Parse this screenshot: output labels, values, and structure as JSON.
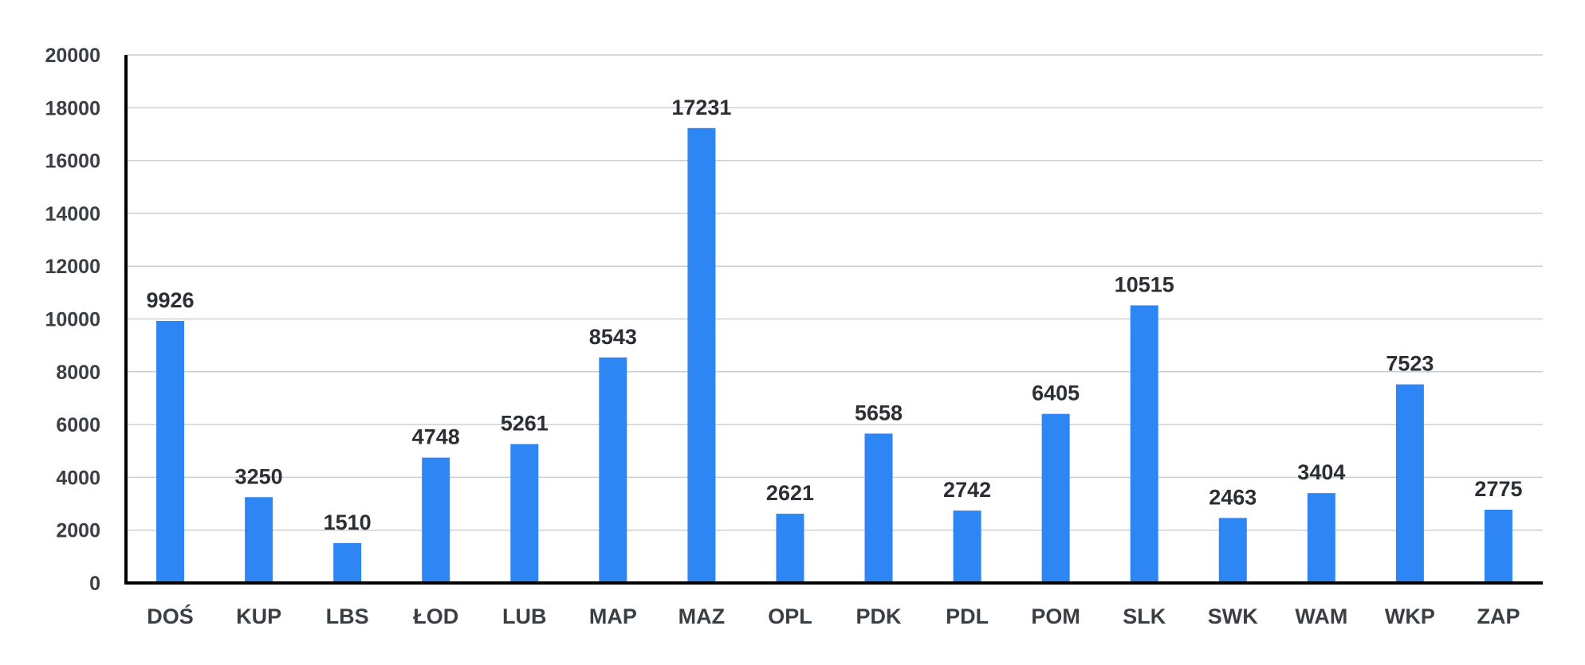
{
  "chart_data": {
    "type": "bar",
    "categories": [
      "DOŚ",
      "KUP",
      "LBS",
      "ŁOD",
      "LUB",
      "MAP",
      "MAZ",
      "OPL",
      "PDK",
      "PDL",
      "POM",
      "SLK",
      "SWK",
      "WAM",
      "WKP",
      "ZAP"
    ],
    "values": [
      9926,
      3250,
      1510,
      4748,
      5261,
      8543,
      17231,
      2621,
      5658,
      2742,
      6405,
      10515,
      2463,
      3404,
      7523,
      2775
    ],
    "data_labels": [
      "9926",
      "3250",
      "1510",
      "4748",
      "5261",
      "8543",
      "17231",
      "2621",
      "5658",
      "2742",
      "6405",
      "10515",
      "2463",
      "3404",
      "7523",
      "2775"
    ],
    "y_ticks": [
      0,
      2000,
      4000,
      6000,
      8000,
      10000,
      12000,
      14000,
      16000,
      18000,
      20000
    ],
    "y_tick_labels": [
      "0",
      "2000",
      "4000",
      "6000",
      "8000",
      "10000",
      "12000",
      "14000",
      "16000",
      "18000",
      "20000"
    ],
    "ylim": [
      0,
      20000
    ],
    "grid": true,
    "legend": "none",
    "bar_color": "#2e86f5",
    "grid_color": "#c9d0d4",
    "axis_color": "#000000"
  }
}
